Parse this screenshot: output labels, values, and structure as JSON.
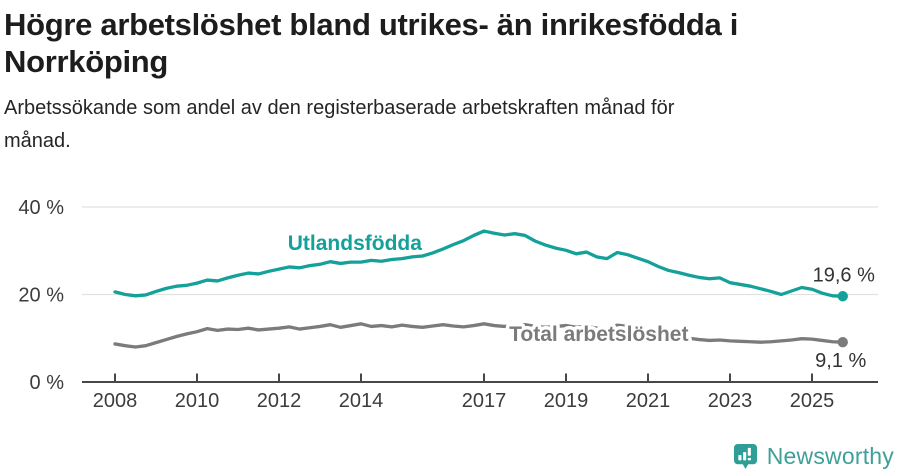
{
  "header": {
    "title_lines": [
      "Högre arbetslöshet bland utrikes- än inrikesfödda i",
      "Norrköping"
    ],
    "subtitle_lines": [
      "Arbetssökande som andel av den registerbaserade arbetskraften månad för",
      "månad."
    ]
  },
  "footer": {
    "brand": "Newsworthy",
    "logo_icon": "bar-chart-speech-bubble-icon"
  },
  "colors": {
    "accent_teal": "#14a19a",
    "series_gray": "#7b7b7b",
    "grid": "#e1e1e1",
    "axis": "#474747",
    "tick_text": "#3c3c3c",
    "value_text": "#333333",
    "title_text": "#1d1d1d",
    "brand_teal": "#3f9f99",
    "brand_icon_teal": "#2f9e97"
  },
  "chart_data": {
    "type": "line",
    "title": "Högre arbetslöshet bland utrikes- än inrikesfödda i Norrköping",
    "subtitle": "Arbetssökande som andel av den registerbaserade arbetskraften månad för månad.",
    "xlabel": "",
    "ylabel": "",
    "grid": "horizontal",
    "legend_position": "inline-labels",
    "xlim": [
      2007.2,
      2026.6
    ],
    "ylim": [
      0,
      44
    ],
    "x_ticks": [
      2008,
      2010,
      2012,
      2014,
      2017,
      2019,
      2021,
      2023,
      2025
    ],
    "y_ticks": [
      {
        "value": 0,
        "label": "0 %"
      },
      {
        "value": 20,
        "label": "20 %"
      },
      {
        "value": 40,
        "label": "40 %"
      }
    ],
    "x_unit": "year (monthly series)",
    "y_unit": "percent",
    "series": [
      {
        "name": "Utlandsfödda",
        "color": "#14a19a",
        "end_label": "19,6 %",
        "end_value": 19.6,
        "label_at": {
          "x": 2013.85,
          "y": 30.2
        },
        "end_label_offset": {
          "dx": 1,
          "dy": -15
        },
        "x_start": 2008.0,
        "x_step": 0.25,
        "values": [
          20.6,
          20.0,
          19.7,
          19.9,
          20.7,
          21.4,
          21.9,
          22.1,
          22.6,
          23.3,
          23.1,
          23.8,
          24.4,
          24.9,
          24.7,
          25.3,
          25.8,
          26.3,
          26.1,
          26.6,
          26.9,
          27.5,
          27.1,
          27.4,
          27.4,
          27.8,
          27.6,
          28.0,
          28.2,
          28.6,
          28.8,
          29.5,
          30.4,
          31.4,
          32.3,
          33.5,
          34.5,
          34.0,
          33.6,
          33.9,
          33.5,
          32.2,
          31.3,
          30.6,
          30.1,
          29.3,
          29.7,
          28.6,
          28.2,
          29.6,
          29.1,
          28.3,
          27.5,
          26.4,
          25.5,
          25.0,
          24.4,
          23.9,
          23.6,
          23.8,
          22.7,
          22.3,
          21.9,
          21.3,
          20.7,
          20.0,
          20.8,
          21.6,
          21.2,
          20.3,
          19.7,
          19.6
        ]
      },
      {
        "name": "Total arbetslöshet",
        "color": "#7b7b7b",
        "end_label": "9,1 %",
        "end_value": 9.1,
        "label_at": {
          "x": 2019.8,
          "y": 9.35
        },
        "end_label_offset": {
          "dx": -2,
          "dy": 25
        },
        "x_start": 2008.0,
        "x_step": 0.25,
        "values": [
          8.7,
          8.3,
          8.0,
          8.3,
          9.0,
          9.7,
          10.4,
          11.0,
          11.5,
          12.2,
          11.8,
          12.1,
          12.0,
          12.3,
          11.9,
          12.1,
          12.3,
          12.6,
          12.1,
          12.4,
          12.7,
          13.1,
          12.5,
          12.9,
          13.3,
          12.7,
          12.9,
          12.6,
          13.0,
          12.7,
          12.5,
          12.8,
          13.1,
          12.8,
          12.6,
          12.9,
          13.3,
          12.9,
          12.7,
          13.0,
          13.1,
          12.7,
          12.5,
          12.7,
          12.9,
          12.5,
          12.7,
          12.3,
          12.2,
          13.0,
          12.7,
          12.3,
          11.8,
          11.2,
          10.7,
          10.3,
          10.0,
          9.7,
          9.5,
          9.6,
          9.4,
          9.3,
          9.2,
          9.1,
          9.2,
          9.4,
          9.6,
          9.9,
          9.8,
          9.5,
          9.2,
          9.1
        ]
      }
    ]
  }
}
